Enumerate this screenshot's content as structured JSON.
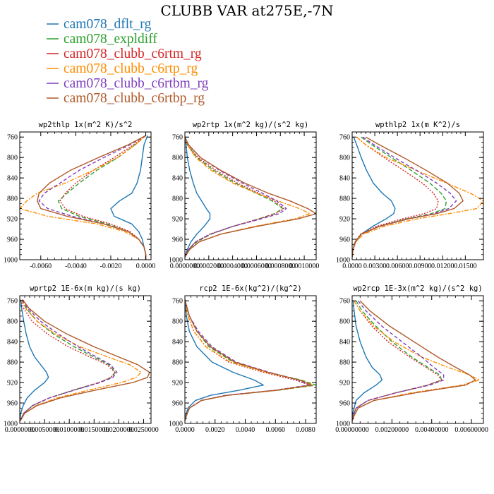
{
  "title": "CLUBB VAR at275E,-7N",
  "legend": [
    {
      "name": "cam078_dflt_rg",
      "color": "#1f77b4"
    },
    {
      "name": "cam078_expldiff",
      "color": "#2ca02c"
    },
    {
      "name": "cam078_clubb_c6rtm_rg",
      "color": "#d62728"
    },
    {
      "name": "cam078_clubb_c6rtp_rg",
      "color": "#ff8c00"
    },
    {
      "name": "cam078_clubb_c6rtbm_rg",
      "color": "#7f3fbf"
    },
    {
      "name": "cam078_clubb_c6rtbp_rg",
      "color": "#b05a2a"
    }
  ],
  "chart_data": [
    {
      "type": "line",
      "title": "wp2thlp  1x(m^2 K)/s^2",
      "xlim": [
        -0.0072,
        0.0003
      ],
      "ylim": [
        1000,
        750
      ],
      "xticks": [
        -0.006,
        -0.004,
        -0.002,
        0
      ],
      "xticklabels": [
        "-0.0060",
        "-0.0040",
        "-0.0020",
        "0.0000"
      ],
      "yticks": [
        760,
        800,
        840,
        880,
        920,
        960,
        1000
      ],
      "y": [
        757,
        775,
        800,
        825,
        850,
        870,
        885,
        900,
        915,
        930,
        945,
        960,
        975,
        990,
        1000
      ],
      "series": [
        {
          "name": "cam078_dflt_rg",
          "values": [
            0.0001,
            -0.0001,
            -0.0002,
            -0.0003,
            -0.0005,
            -0.0008,
            -0.0015,
            -0.002,
            -0.0018,
            -0.0008,
            -0.0004,
            -0.0002,
            -0.0001,
            0,
            0
          ]
        },
        {
          "name": "cam078_expldiff",
          "values": [
            0,
            -0.0006,
            -0.0016,
            -0.0028,
            -0.0038,
            -0.0045,
            -0.005,
            -0.0048,
            -0.0038,
            -0.0022,
            -0.001,
            -0.0004,
            -0.0001,
            0,
            0
          ]
        },
        {
          "name": "cam078_clubb_c6rtm_rg",
          "values": [
            0,
            -0.0007,
            -0.0018,
            -0.003,
            -0.004,
            -0.0046,
            -0.0049,
            -0.0046,
            -0.0036,
            -0.002,
            -0.0009,
            -0.0004,
            -0.0001,
            0,
            0
          ]
        },
        {
          "name": "cam078_clubb_c6rtp_rg",
          "values": [
            0,
            -0.0006,
            -0.0016,
            -0.003,
            -0.0046,
            -0.0062,
            -0.0068,
            -0.0072,
            -0.0056,
            -0.0028,
            -0.0012,
            -0.0004,
            -0.0001,
            0,
            0
          ]
        },
        {
          "name": "cam078_clubb_c6rtbm_rg",
          "values": [
            0,
            -0.0009,
            -0.0024,
            -0.0038,
            -0.0049,
            -0.0058,
            -0.0061,
            -0.0056,
            -0.0042,
            -0.0024,
            -0.001,
            -0.0004,
            -0.0001,
            0,
            0
          ]
        },
        {
          "name": "cam078_clubb_c6rtbp_rg",
          "values": [
            0,
            -0.001,
            -0.0027,
            -0.0043,
            -0.0055,
            -0.0061,
            -0.0062,
            -0.006,
            -0.0045,
            -0.0024,
            -0.001,
            -0.0004,
            -0.0001,
            0,
            0
          ]
        }
      ]
    },
    {
      "type": "line",
      "title": "wp2rtp  1x(m^2 kg)/(s^2 kg)",
      "xlim": [
        0,
        0.0011
      ],
      "ylim": [
        1000,
        750
      ],
      "xticks": [
        0,
        0.0002,
        0.0004,
        0.0006,
        0.0008,
        0.001
      ],
      "xticklabels": [
        "0.0000000",
        "0.0002000",
        "0.0004000",
        "0.0006000",
        "0.0008000",
        "0.0010000"
      ],
      "yticks": [
        760,
        800,
        840,
        880,
        920,
        960,
        1000
      ],
      "y": [
        760,
        775,
        800,
        825,
        850,
        870,
        885,
        900,
        910,
        920,
        935,
        950,
        965,
        980,
        995
      ],
      "series": [
        {
          "name": "cam078_dflt_rg",
          "values": [
            0,
            1e-05,
            2e-05,
            4e-05,
            7e-05,
            0.0001,
            0.00014,
            0.00018,
            0.00021,
            0.00021,
            0.00016,
            0.0001,
            5e-05,
            2e-05,
            0
          ]
        },
        {
          "name": "cam078_expldiff",
          "values": [
            0,
            2e-05,
            0.0001,
            0.00024,
            0.00042,
            0.0006,
            0.00073,
            0.00082,
            0.00075,
            0.00062,
            0.0004,
            0.00022,
            0.0001,
            3e-05,
            0
          ]
        },
        {
          "name": "cam078_clubb_c6rtm_rg",
          "values": [
            0,
            2e-05,
            0.00011,
            0.00026,
            0.00044,
            0.00062,
            0.00075,
            0.00083,
            0.00076,
            0.00062,
            0.0004,
            0.00021,
            9e-05,
            3e-05,
            0
          ]
        },
        {
          "name": "cam078_clubb_c6rtp_rg",
          "values": [
            0,
            2e-05,
            9e-05,
            0.00022,
            0.0004,
            0.0006,
            0.00078,
            0.00096,
            0.00105,
            0.00092,
            0.00058,
            0.0003,
            0.00012,
            4e-05,
            0
          ]
        },
        {
          "name": "cam078_clubb_c6rtbm_rg",
          "values": [
            0,
            3e-05,
            0.00013,
            0.00029,
            0.00048,
            0.00065,
            0.00077,
            0.00085,
            0.00079,
            0.00064,
            0.0004,
            0.00021,
            9e-05,
            3e-05,
            0
          ]
        },
        {
          "name": "cam078_clubb_c6rtbp_rg",
          "values": [
            0,
            3e-05,
            0.00013,
            0.0003,
            0.0005,
            0.0007,
            0.00088,
            0.00103,
            0.0011,
            0.00095,
            0.0006,
            0.0003,
            0.00012,
            4e-05,
            0
          ]
        }
      ]
    },
    {
      "type": "line",
      "title": "wpthlp2  1x(m K^2)/s",
      "xlim": [
        0,
        0.0174
      ],
      "ylim": [
        1000,
        750
      ],
      "xticks": [
        0,
        0.003,
        0.006,
        0.009,
        0.012,
        0.015
      ],
      "xticklabels": [
        "0.0000",
        "0.00300",
        "0.00600",
        "0.00900",
        "0.01200",
        "0.01500"
      ],
      "yticks": [
        760,
        800,
        840,
        880,
        920,
        960,
        1000
      ],
      "y": [
        760,
        775,
        800,
        825,
        850,
        870,
        885,
        900,
        910,
        920,
        935,
        950,
        965,
        980,
        995
      ],
      "series": [
        {
          "name": "cam078_dflt_rg",
          "values": [
            0.0002,
            0.0006,
            0.0012,
            0.0019,
            0.0028,
            0.004,
            0.0052,
            0.0057,
            0.0055,
            0.0045,
            0.0027,
            0.0012,
            0.0005,
            0.0001,
            0
          ]
        },
        {
          "name": "cam078_expldiff",
          "values": [
            0.0012,
            0.0026,
            0.0052,
            0.0078,
            0.0103,
            0.0118,
            0.0125,
            0.0123,
            0.0105,
            0.0072,
            0.0035,
            0.0012,
            0.0004,
            0.0001,
            0
          ]
        },
        {
          "name": "cam078_clubb_c6rtm_rg",
          "values": [
            0.0006,
            0.0018,
            0.0042,
            0.0068,
            0.0093,
            0.0108,
            0.0114,
            0.0112,
            0.0095,
            0.0066,
            0.0032,
            0.0011,
            0.0004,
            0.0001,
            0
          ]
        },
        {
          "name": "cam078_clubb_c6rtp_rg",
          "values": [
            0.0006,
            0.0018,
            0.0045,
            0.0085,
            0.0125,
            0.0157,
            0.0174,
            0.0165,
            0.0128,
            0.0086,
            0.0042,
            0.0015,
            0.0005,
            0.0001,
            0
          ]
        },
        {
          "name": "cam078_clubb_c6rtbm_rg",
          "values": [
            0.0014,
            0.0029,
            0.0056,
            0.0085,
            0.0112,
            0.013,
            0.0138,
            0.0128,
            0.0108,
            0.0073,
            0.0035,
            0.0012,
            0.0004,
            0.0001,
            0
          ]
        },
        {
          "name": "cam078_clubb_c6rtbp_rg",
          "values": [
            0.0018,
            0.0036,
            0.0068,
            0.0098,
            0.0126,
            0.0142,
            0.0147,
            0.0135,
            0.0112,
            0.0075,
            0.0036,
            0.0012,
            0.0004,
            0.0001,
            0
          ]
        }
      ]
    },
    {
      "type": "line",
      "title": "wprtp2  1E-6x(m kg)/(s kg)",
      "xlim": [
        0,
        0.0265
      ],
      "ylim": [
        1000,
        750
      ],
      "xticks": [
        0,
        0.005,
        0.01,
        0.015,
        0.02,
        0.025
      ],
      "xticklabels": [
        "0.0000000",
        "0.0050000",
        "0.0100000",
        "0.0150000",
        "0.0200000",
        "0.0250000"
      ],
      "yticks": [
        760,
        800,
        840,
        880,
        920,
        960,
        1000
      ],
      "y": [
        758,
        775,
        800,
        825,
        850,
        870,
        885,
        900,
        910,
        920,
        935,
        950,
        965,
        980,
        995
      ],
      "series": [
        {
          "name": "cam078_dflt_rg",
          "values": [
            0.0002,
            0.0004,
            0.0008,
            0.0013,
            0.002,
            0.003,
            0.0042,
            0.0054,
            0.0058,
            0.005,
            0.003,
            0.0015,
            0.0007,
            0.0002,
            0
          ]
        },
        {
          "name": "cam078_expldiff",
          "values": [
            0.0004,
            0.0013,
            0.0035,
            0.0068,
            0.011,
            0.015,
            0.018,
            0.0193,
            0.0185,
            0.016,
            0.0108,
            0.006,
            0.0026,
            0.0008,
            0.0001
          ]
        },
        {
          "name": "cam078_clubb_c6rtm_rg",
          "values": [
            0.0002,
            0.0008,
            0.0025,
            0.0056,
            0.0098,
            0.0142,
            0.0176,
            0.0192,
            0.0184,
            0.016,
            0.0108,
            0.006,
            0.0026,
            0.0008,
            0.0001
          ]
        },
        {
          "name": "cam078_clubb_c6rtp_rg",
          "values": [
            0.0004,
            0.0012,
            0.0035,
            0.0072,
            0.0122,
            0.0178,
            0.0222,
            0.0245,
            0.0235,
            0.0205,
            0.0138,
            0.0076,
            0.0033,
            0.001,
            0.0001
          ]
        },
        {
          "name": "cam078_clubb_c6rtbm_rg",
          "values": [
            0.0005,
            0.0016,
            0.0042,
            0.0078,
            0.0118,
            0.0155,
            0.0183,
            0.0196,
            0.0188,
            0.0162,
            0.011,
            0.006,
            0.0026,
            0.0008,
            0.0001
          ]
        },
        {
          "name": "cam078_clubb_c6rtbp_rg",
          "values": [
            0.0006,
            0.0019,
            0.005,
            0.0095,
            0.015,
            0.02,
            0.0238,
            0.0262,
            0.0258,
            0.0228,
            0.0152,
            0.0082,
            0.0035,
            0.001,
            0.0001
          ]
        }
      ]
    },
    {
      "type": "line",
      "title": "rcp2  1E-6x(kg^2)/(kg^2)",
      "xlim": [
        0,
        0.0087
      ],
      "ylim": [
        1000,
        750
      ],
      "xticks": [
        0,
        0.002,
        0.004,
        0.006,
        0.008
      ],
      "xticklabels": [
        "0.0000",
        "0.0020",
        "0.0040",
        "0.0060",
        "0.0080"
      ],
      "yticks": [
        760,
        800,
        840,
        880,
        920,
        960,
        1000
      ],
      "y": [
        758,
        790,
        820,
        850,
        880,
        900,
        915,
        925,
        935,
        945,
        955,
        970,
        985,
        995
      ],
      "series": [
        {
          "name": "cam078_dflt_rg",
          "values": [
            0,
            0.0001,
            0.0003,
            0.0008,
            0.0018,
            0.0032,
            0.0046,
            0.0052,
            0.0036,
            0.0017,
            0.0007,
            0.0002,
            5e-05,
            0
          ]
        },
        {
          "name": "cam078_expldiff",
          "values": [
            0,
            0.0003,
            0.0008,
            0.0016,
            0.0032,
            0.0055,
            0.0077,
            0.0087,
            0.0062,
            0.0028,
            0.0011,
            0.0003,
            0.0001,
            0
          ]
        },
        {
          "name": "cam078_clubb_c6rtm_rg",
          "values": [
            0,
            0.0002,
            0.0006,
            0.0014,
            0.0029,
            0.0052,
            0.0073,
            0.0083,
            0.006,
            0.0027,
            0.0011,
            0.0003,
            0.0001,
            0
          ]
        },
        {
          "name": "cam078_clubb_c6rtp_rg",
          "values": [
            0,
            0.0002,
            0.0006,
            0.0014,
            0.003,
            0.0054,
            0.0076,
            0.0085,
            0.0062,
            0.0028,
            0.0011,
            0.0003,
            0.0001,
            0
          ]
        },
        {
          "name": "cam078_clubb_c6rtbm_rg",
          "values": [
            0,
            0.0003,
            0.0009,
            0.0018,
            0.0034,
            0.0056,
            0.0075,
            0.0082,
            0.006,
            0.0027,
            0.0011,
            0.0003,
            0.0001,
            0
          ]
        },
        {
          "name": "cam078_clubb_c6rtbp_rg",
          "values": [
            0,
            0.0003,
            0.0008,
            0.0017,
            0.0033,
            0.0055,
            0.0076,
            0.0084,
            0.0061,
            0.0028,
            0.0011,
            0.0003,
            0.0001,
            0
          ]
        }
      ]
    },
    {
      "type": "line",
      "title": "wp2rcp  1E-3x(m^2 kg)/(s^2 kg)",
      "xlim": [
        0,
        0.0066
      ],
      "ylim": [
        1000,
        750
      ],
      "xticks": [
        0,
        0.002,
        0.004,
        0.006
      ],
      "xticklabels": [
        "0.00000000",
        "0.00200000",
        "0.00400000",
        "0.00600000"
      ],
      "yticks": [
        760,
        800,
        840,
        880,
        920,
        960,
        1000
      ],
      "y": [
        760,
        780,
        810,
        840,
        870,
        890,
        905,
        915,
        925,
        940,
        955,
        970,
        985,
        995
      ],
      "series": [
        {
          "name": "cam078_dflt_rg",
          "values": [
            5e-05,
            0.0001,
            0.0002,
            0.0004,
            0.0007,
            0.001,
            0.0014,
            0.0015,
            0.0012,
            0.0006,
            0.0002,
            0.0001,
            0,
            0
          ]
        },
        {
          "name": "cam078_expldiff",
          "values": [
            0.0002,
            0.0005,
            0.0012,
            0.002,
            0.003,
            0.0038,
            0.0044,
            0.0045,
            0.0038,
            0.0022,
            0.0008,
            0.0002,
            5e-05,
            0
          ]
        },
        {
          "name": "cam078_clubb_c6rtm_rg",
          "values": [
            0.0001,
            0.0004,
            0.001,
            0.0018,
            0.0029,
            0.0037,
            0.0043,
            0.0045,
            0.0038,
            0.0022,
            0.0008,
            0.0002,
            5e-05,
            0
          ]
        },
        {
          "name": "cam078_clubb_c6rtp_rg",
          "values": [
            0.0001,
            0.0004,
            0.0011,
            0.0021,
            0.0035,
            0.0048,
            0.0059,
            0.0064,
            0.0055,
            0.003,
            0.0011,
            0.0003,
            0.0001,
            0
          ]
        },
        {
          "name": "cam078_clubb_c6rtbm_rg",
          "values": [
            0.0003,
            0.0007,
            0.0015,
            0.0025,
            0.0035,
            0.0041,
            0.0046,
            0.0046,
            0.0039,
            0.0022,
            0.0008,
            0.0002,
            5e-05,
            0
          ]
        },
        {
          "name": "cam078_clubb_c6rtbp_rg",
          "values": [
            0.0004,
            0.0009,
            0.0019,
            0.0031,
            0.0043,
            0.0052,
            0.0059,
            0.0062,
            0.0057,
            0.0032,
            0.0011,
            0.0003,
            0.0001,
            0
          ]
        }
      ]
    }
  ]
}
